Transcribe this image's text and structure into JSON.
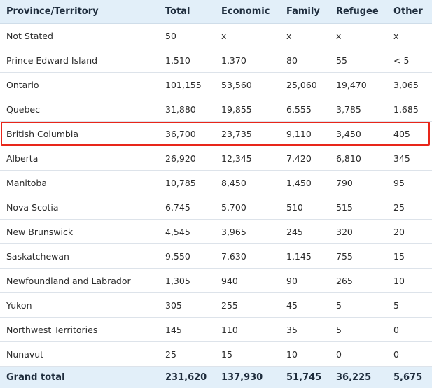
{
  "columns": [
    "Province/Territory",
    "Total",
    "Economic",
    "Family",
    "Refugee",
    "Other"
  ],
  "rows": [
    [
      "Not Stated",
      "50",
      "x",
      "x",
      "x",
      "x"
    ],
    [
      "Prince Edward Island",
      "1,510",
      "1,370",
      "80",
      "55",
      "< 5"
    ],
    [
      "Ontario",
      "101,155",
      "53,560",
      "25,060",
      "19,470",
      "3,065"
    ],
    [
      "Quebec",
      "31,880",
      "19,855",
      "6,555",
      "3,785",
      "1,685"
    ],
    [
      "British Columbia",
      "36,700",
      "23,735",
      "9,110",
      "3,450",
      "405"
    ],
    [
      "Alberta",
      "26,920",
      "12,345",
      "7,420",
      "6,810",
      "345"
    ],
    [
      "Manitoba",
      "10,785",
      "8,450",
      "1,450",
      "790",
      "95"
    ],
    [
      "Nova Scotia",
      "6,745",
      "5,700",
      "510",
      "515",
      "25"
    ],
    [
      "New Brunswick",
      "4,545",
      "3,965",
      "245",
      "320",
      "20"
    ],
    [
      "Saskatchewan",
      "9,550",
      "7,630",
      "1,145",
      "755",
      "15"
    ],
    [
      "Newfoundland and Labrador",
      "1,305",
      "940",
      "90",
      "265",
      "10"
    ],
    [
      "Yukon",
      "305",
      "255",
      "45",
      "5",
      "5"
    ],
    [
      "Northwest Territories",
      "145",
      "110",
      "35",
      "5",
      "0"
    ],
    [
      "Nunavut",
      "25",
      "15",
      "10",
      "0",
      "0"
    ]
  ],
  "grand_total": [
    "Grand total",
    "231,620",
    "137,930",
    "51,745",
    "36,225",
    "5,675"
  ],
  "highlighted_row": "British Columbia",
  "colors": {
    "header_background": "#e2eff9",
    "highlight_border": "#e8261a",
    "row_divider": "#dde3ea"
  }
}
